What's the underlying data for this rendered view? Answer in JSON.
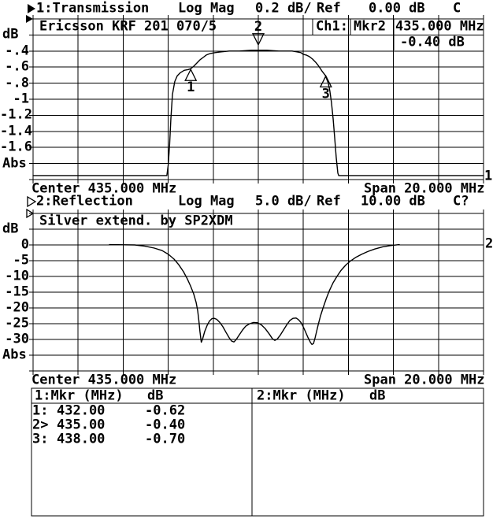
{
  "colors": {
    "background": "#ffffff",
    "foreground": "#000000"
  },
  "icons": {
    "channel1_indicator": "filled-right-triangle",
    "channel1_ref_marker": "filled-right-triangle",
    "channel2_indicator": "open-right-triangle",
    "channel2_ref_marker": "open-right-triangle",
    "marker_up_symbol": "open-up-triangle",
    "marker_down_symbol": "open-down-triangle"
  },
  "charts": [
    {
      "header": {
        "title": "1:Transmission",
        "format": "Log Mag",
        "scale": "0.2 dB/",
        "ref_label": "Ref",
        "ref_value": "0.00 dB",
        "status": "C"
      },
      "title": "Ericsson KRF 201 070/5",
      "y_axis": {
        "unit": "dB",
        "labels": [
          "-.4",
          "-.6",
          "-.8",
          "-1",
          "-1.2",
          "-1.4",
          "-1.6"
        ],
        "floor": "Abs"
      },
      "footer": {
        "center": "Center 435.000 MHz",
        "span": "Span 20.000 MHz"
      },
      "readout": {
        "channel": "Ch1:",
        "marker": "Mkr2",
        "frequency": "435.000 MHz",
        "level": "-0.40 dB"
      },
      "trace_number": "1"
    },
    {
      "header": {
        "title": "2:Reflection",
        "format": "Log Mag",
        "scale": "5.0 dB/",
        "ref_label": "Ref",
        "ref_value": "10.00 dB",
        "status": "C?"
      },
      "title": "Silver extend. by SP2XDM",
      "y_axis": {
        "unit": "dB",
        "labels": [
          "0",
          "-5",
          "-10",
          "-15",
          "-20",
          "-25",
          "-30"
        ],
        "floor": "Abs"
      },
      "footer": {
        "center": "Center 435.000 MHz",
        "span": "Span 20.000 MHz"
      },
      "trace_number": "2"
    }
  ],
  "marker_table": {
    "left": {
      "header": "1:Mkr (MHz)",
      "unit": "dB",
      "rows": [
        {
          "marker": "1:",
          "freq": "432.00",
          "level": "-0.62"
        },
        {
          "marker": "2>",
          "freq": "435.00",
          "level": "-0.40"
        },
        {
          "marker": "3:",
          "freq": "438.00",
          "level": "-0.70"
        }
      ]
    },
    "right": {
      "header": "2:Mkr (MHz)",
      "unit": "dB",
      "rows": []
    }
  },
  "chart_data": [
    {
      "type": "line",
      "name": "transmission",
      "title": "Ericsson KRF 201 070/5",
      "ylabel": "dB",
      "xlim": [
        425,
        445
      ],
      "ylim": [
        0,
        -2
      ],
      "divisions": 10,
      "ref_db": 0.0,
      "scale_db_per_div": 0.2,
      "center_mhz": 435.0,
      "span_mhz": 20.0,
      "grid": true,
      "trace": [
        [
          425,
          -1.95
        ],
        [
          430.94,
          -1.95
        ],
        [
          431.0,
          -1.82
        ],
        [
          431.06,
          -1.58
        ],
        [
          431.12,
          -1.24
        ],
        [
          431.19,
          -0.94
        ],
        [
          431.29,
          -0.78
        ],
        [
          431.4,
          -0.71
        ],
        [
          431.54,
          -0.67
        ],
        [
          431.71,
          -0.64
        ],
        [
          431.89,
          -0.63
        ],
        [
          432.0,
          -0.62
        ],
        [
          432.13,
          -0.59
        ],
        [
          432.27,
          -0.55
        ],
        [
          432.41,
          -0.51
        ],
        [
          432.55,
          -0.48
        ],
        [
          432.69,
          -0.45
        ],
        [
          432.87,
          -0.43
        ],
        [
          433.08,
          -0.42
        ],
        [
          433.36,
          -0.41
        ],
        [
          433.71,
          -0.4
        ],
        [
          434.16,
          -0.4
        ],
        [
          434.69,
          -0.39
        ],
        [
          435.38,
          -0.39
        ],
        [
          435.91,
          -0.4
        ],
        [
          436.26,
          -0.4
        ],
        [
          436.5,
          -0.4
        ],
        [
          436.71,
          -0.41
        ],
        [
          436.89,
          -0.42
        ],
        [
          436.99,
          -0.44
        ],
        [
          437.13,
          -0.45
        ],
        [
          437.27,
          -0.47
        ],
        [
          437.41,
          -0.5
        ],
        [
          437.55,
          -0.54
        ],
        [
          437.69,
          -0.59
        ],
        [
          437.83,
          -0.65
        ],
        [
          437.97,
          -0.7
        ],
        [
          438.04,
          -0.75
        ],
        [
          438.11,
          -0.8
        ],
        [
          438.18,
          -0.9
        ],
        [
          438.25,
          -1.04
        ],
        [
          438.32,
          -1.24
        ],
        [
          438.39,
          -1.48
        ],
        [
          438.46,
          -1.73
        ],
        [
          438.53,
          -1.92
        ],
        [
          438.57,
          -1.95
        ],
        [
          445,
          -1.95
        ]
      ],
      "markers": [
        {
          "n": "1",
          "mhz": 432.0,
          "db": -0.62,
          "dir": "up"
        },
        {
          "n": "2",
          "mhz": 435.0,
          "db": -0.4,
          "dir": "down"
        },
        {
          "n": "3",
          "mhz": 438.0,
          "db": -0.7,
          "dir": "up"
        }
      ]
    },
    {
      "type": "line",
      "name": "reflection",
      "title": "Silver extend. by SP2XDM",
      "ylabel": "dB",
      "xlim": [
        425,
        445
      ],
      "ylim": [
        10,
        -40
      ],
      "divisions": 10,
      "ref_db": 10.0,
      "scale_db_per_div": 5.0,
      "center_mhz": 435.0,
      "span_mhz": 20.0,
      "grid": true,
      "trace": [
        [
          428.39,
          0.1
        ],
        [
          429.51,
          0.0
        ],
        [
          429.97,
          -0.4
        ],
        [
          430.38,
          -1.0
        ],
        [
          430.73,
          -1.8
        ],
        [
          431.01,
          -3.0
        ],
        [
          431.26,
          -4.5
        ],
        [
          431.47,
          -6.3
        ],
        [
          431.68,
          -8.5
        ],
        [
          431.85,
          -10.8
        ],
        [
          431.99,
          -13.0
        ],
        [
          432.13,
          -15.5
        ],
        [
          432.24,
          -18.3
        ],
        [
          432.31,
          -21.0
        ],
        [
          432.36,
          -24.0
        ],
        [
          432.41,
          -27.5
        ],
        [
          432.47,
          -30.9
        ],
        [
          432.52,
          -30.0
        ],
        [
          432.62,
          -27.5
        ],
        [
          432.73,
          -25.5
        ],
        [
          432.83,
          -24.2
        ],
        [
          432.94,
          -23.4
        ],
        [
          433.04,
          -23.3
        ],
        [
          433.15,
          -23.6
        ],
        [
          433.29,
          -24.6
        ],
        [
          433.43,
          -26.0
        ],
        [
          433.57,
          -27.8
        ],
        [
          433.71,
          -29.5
        ],
        [
          433.81,
          -30.5
        ],
        [
          433.92,
          -30.8
        ],
        [
          434.02,
          -30.0
        ],
        [
          434.16,
          -28.5
        ],
        [
          434.3,
          -27.0
        ],
        [
          434.44,
          -25.8
        ],
        [
          434.62,
          -25.0
        ],
        [
          434.79,
          -24.6
        ],
        [
          434.97,
          -24.7
        ],
        [
          435.14,
          -25.4
        ],
        [
          435.31,
          -26.6
        ],
        [
          435.49,
          -28.3
        ],
        [
          435.63,
          -29.8
        ],
        [
          435.73,
          -30.3
        ],
        [
          435.84,
          -29.9
        ],
        [
          435.98,
          -28.6
        ],
        [
          436.12,
          -27.0
        ],
        [
          436.26,
          -25.4
        ],
        [
          436.4,
          -24.0
        ],
        [
          436.54,
          -23.3
        ],
        [
          436.68,
          -23.2
        ],
        [
          436.78,
          -23.7
        ],
        [
          436.89,
          -24.6
        ],
        [
          436.99,
          -25.9
        ],
        [
          437.09,
          -27.5
        ],
        [
          437.2,
          -29.3
        ],
        [
          437.31,
          -30.9
        ],
        [
          437.38,
          -31.6
        ],
        [
          437.45,
          -31.3
        ],
        [
          437.52,
          -29.5
        ],
        [
          437.59,
          -27.4
        ],
        [
          437.66,
          -25.3
        ],
        [
          437.76,
          -22.6
        ],
        [
          437.87,
          -20.1
        ],
        [
          438.01,
          -17.2
        ],
        [
          438.15,
          -14.6
        ],
        [
          438.32,
          -12.0
        ],
        [
          438.5,
          -9.9
        ],
        [
          438.67,
          -8.1
        ],
        [
          438.88,
          -6.4
        ],
        [
          439.09,
          -5.1
        ],
        [
          439.34,
          -3.9
        ],
        [
          439.58,
          -3.0
        ],
        [
          439.86,
          -2.1
        ],
        [
          440.17,
          -1.3
        ],
        [
          440.52,
          -0.6
        ],
        [
          440.87,
          -0.2
        ],
        [
          441.26,
          0.1
        ]
      ],
      "markers": []
    }
  ]
}
